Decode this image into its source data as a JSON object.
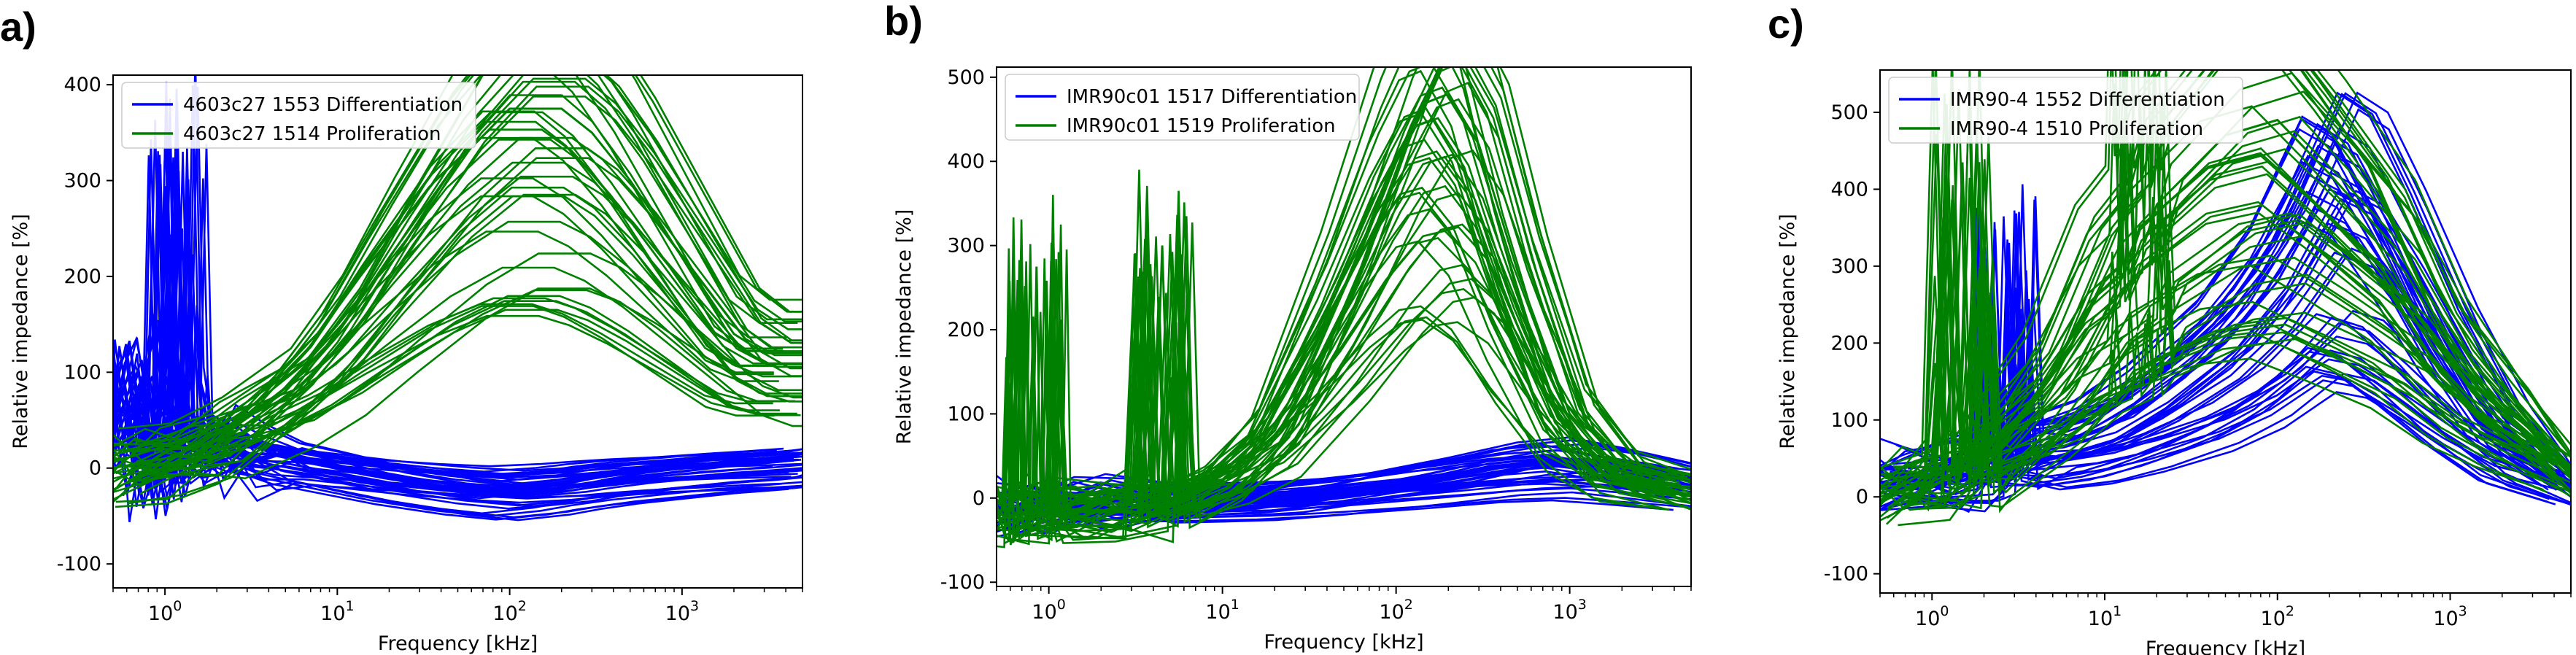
{
  "chart_data": [
    {
      "panel": "a)",
      "type": "line",
      "xscale": "log",
      "xlabel": "Frequency [kHz]",
      "ylabel": "Relative impedance [%]",
      "xlim": [
        0.5,
        5000
      ],
      "ylim": [
        -125,
        410
      ],
      "yticks": [
        -100,
        0,
        100,
        200,
        300,
        400
      ],
      "xticks": [
        {
          "base": "10",
          "exp": "0"
        },
        {
          "base": "10",
          "exp": "1"
        },
        {
          "base": "10",
          "exp": "2"
        },
        {
          "base": "10",
          "exp": "3"
        }
      ],
      "legend_position": "top-left",
      "series": [
        {
          "name": "4603c27 1553 Differentiation",
          "color": "#0000ff",
          "x": [
            0.5,
            0.6,
            0.7,
            0.8,
            0.9,
            1,
            1.1,
            1.2,
            1.3,
            1.5,
            2,
            3,
            5,
            10,
            20,
            50,
            100,
            200,
            300,
            500,
            1000,
            2000,
            3000,
            5000
          ],
          "y": [
            20,
            60,
            100,
            40,
            -20,
            10,
            40,
            310,
            50,
            15,
            30,
            10,
            5,
            -5,
            -15,
            -25,
            -30,
            -25,
            -20,
            -15,
            -10,
            -5,
            -3,
            0
          ]
        },
        {
          "name": "4603c27 1514 Proliferation",
          "color": "#008000",
          "x": [
            0.5,
            1,
            2,
            5,
            10,
            20,
            50,
            100,
            200,
            300,
            500,
            1000,
            2000,
            3000,
            5000
          ],
          "y": [
            0,
            10,
            30,
            80,
            140,
            220,
            320,
            375,
            375,
            350,
            300,
            220,
            140,
            120,
            120
          ]
        }
      ]
    },
    {
      "panel": "b)",
      "type": "line",
      "xscale": "log",
      "xlabel": "Frequency [kHz]",
      "ylabel": "Relative impedance [%]",
      "xlim": [
        0.5,
        5000
      ],
      "ylim": [
        -105,
        512
      ],
      "yticks": [
        -100,
        0,
        100,
        200,
        300,
        400,
        500
      ],
      "xticks": [
        {
          "base": "10",
          "exp": "0"
        },
        {
          "base": "10",
          "exp": "1"
        },
        {
          "base": "10",
          "exp": "2"
        },
        {
          "base": "10",
          "exp": "3"
        }
      ],
      "legend_position": "top-left",
      "series": [
        {
          "name": "IMR90c01 1517 Differentiation",
          "color": "#0000ff",
          "x": [
            0.5,
            1,
            2,
            5,
            10,
            20,
            50,
            100,
            200,
            500,
            1000,
            2000,
            5000
          ],
          "y": [
            -15,
            -15,
            -12,
            -10,
            -8,
            -5,
            5,
            15,
            25,
            40,
            45,
            35,
            20
          ]
        },
        {
          "name": "IMR90c01 1519 Proliferation",
          "color": "#008000",
          "x": [
            0.5,
            0.8,
            0.85,
            0.9,
            1,
            2,
            4,
            4.5,
            5,
            10,
            20,
            50,
            100,
            150,
            200,
            300,
            500,
            1000,
            2000,
            5000
          ],
          "y": [
            -20,
            -20,
            275,
            -20,
            -18,
            -15,
            -10,
            300,
            -10,
            20,
            80,
            250,
            400,
            470,
            480,
            420,
            270,
            100,
            30,
            10
          ]
        }
      ]
    },
    {
      "panel": "c)",
      "type": "line",
      "xscale": "log",
      "xlabel": "Frequency [kHz]",
      "ylabel": "Relative impedance [%]",
      "xlim": [
        0.5,
        5000
      ],
      "ylim": [
        -125,
        555
      ],
      "yticks": [
        -100,
        0,
        100,
        200,
        300,
        400,
        500
      ],
      "xticks": [
        {
          "base": "10",
          "exp": "0"
        },
        {
          "base": "10",
          "exp": "1"
        },
        {
          "base": "10",
          "exp": "2"
        },
        {
          "base": "10",
          "exp": "3"
        }
      ],
      "legend_position": "top-left",
      "series": [
        {
          "name": "IMR90-4 1552 Differentiation",
          "color": "#0000ff",
          "x": [
            0.5,
            1,
            2,
            2.5,
            2.7,
            3,
            5,
            10,
            20,
            50,
            100,
            200,
            300,
            500,
            1000,
            2000,
            5000
          ],
          "y": [
            30,
            30,
            40,
            50,
            295,
            60,
            70,
            90,
            130,
            200,
            280,
            400,
            380,
            300,
            180,
            80,
            20
          ]
        },
        {
          "name": "IMR90-4 1510 Proliferation",
          "color": "#008000",
          "x": [
            0.5,
            1,
            1.3,
            1.5,
            1.7,
            2,
            5,
            10,
            15,
            16,
            17,
            20,
            50,
            100,
            200,
            500,
            1000,
            2000,
            5000
          ],
          "y": [
            0,
            20,
            30,
            435,
            40,
            50,
            150,
            280,
            320,
            520,
            330,
            380,
            470,
            490,
            420,
            320,
            200,
            120,
            40
          ]
        }
      ]
    }
  ]
}
